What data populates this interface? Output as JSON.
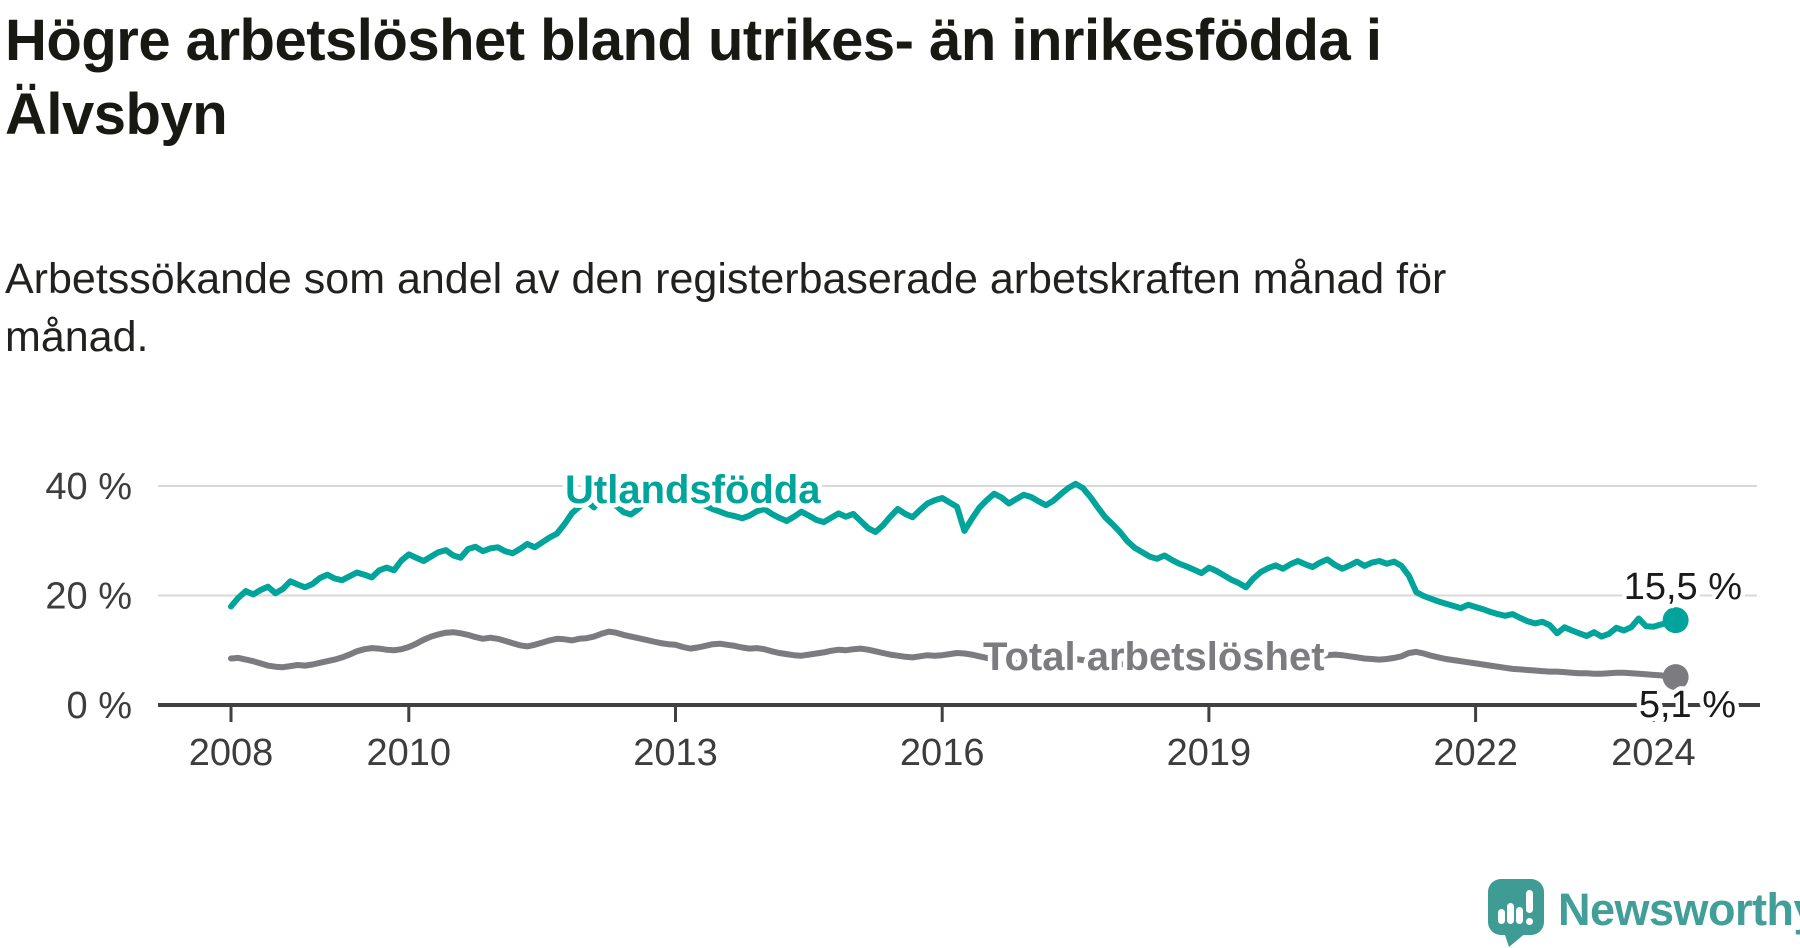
{
  "header": {
    "title_lines": [
      "Högre arbetslöshet bland utrikes- än inrikesfödda i",
      "Älvsbyn"
    ],
    "subtitle_lines": [
      "Arbetssökande som andel av den registerbaserade arbetskraften månad för",
      "månad."
    ]
  },
  "chart_data": {
    "type": "line",
    "title": "Högre arbetslöshet bland utrikes- än inrikesfödda i Älvsbyn",
    "subtitle": "Arbetssökande som andel av den registerbaserade arbetskraften månad för månad.",
    "unit": "%",
    "interval": "monthly",
    "start": "2008-01",
    "end": "2024-04",
    "grid": "horizontal",
    "legend_position": "inline-labels",
    "ylim": [
      0,
      44
    ],
    "x_tick_years": [
      2008,
      2010,
      2013,
      2016,
      2019,
      2022,
      2024
    ],
    "y_ticks": [
      {
        "value": 0,
        "label": "0 %"
      },
      {
        "value": 20,
        "label": "20 %"
      },
      {
        "value": 40,
        "label": "40 %"
      }
    ],
    "series": [
      {
        "name": "Utlandsfödda",
        "color": "#00a49a",
        "end_label": "15,5 %",
        "values": [
          18.0,
          19.6,
          20.8,
          20.2,
          21.0,
          21.6,
          20.4,
          21.2,
          22.6,
          22.0,
          21.5,
          22.1,
          23.2,
          23.8,
          23.1,
          22.8,
          23.5,
          24.2,
          23.8,
          23.3,
          24.6,
          25.1,
          24.6,
          26.4,
          27.5,
          26.9,
          26.3,
          27.1,
          27.9,
          28.3,
          27.3,
          26.9,
          28.5,
          28.9,
          28.1,
          28.6,
          28.8,
          28.1,
          27.7,
          28.5,
          29.4,
          28.8,
          29.7,
          30.6,
          31.3,
          33.0,
          35.0,
          36.2,
          37.2,
          36.1,
          38.1,
          38.0,
          36.4,
          35.2,
          34.8,
          35.8,
          37.2,
          38.4,
          39.4,
          40.1,
          39.4,
          38.6,
          37.8,
          37.0,
          36.4,
          35.8,
          35.3,
          34.8,
          34.5,
          34.1,
          34.6,
          35.4,
          35.8,
          34.9,
          34.2,
          33.6,
          34.4,
          35.3,
          34.6,
          33.8,
          33.4,
          34.2,
          35.0,
          34.4,
          34.9,
          33.6,
          32.3,
          31.6,
          32.8,
          34.4,
          35.8,
          34.9,
          34.3,
          35.6,
          36.8,
          37.4,
          37.8,
          37.0,
          36.2,
          31.8,
          34.0,
          36.0,
          37.4,
          38.6,
          37.9,
          36.8,
          37.6,
          38.4,
          38.0,
          37.2,
          36.5,
          37.3,
          38.5,
          39.6,
          40.4,
          39.6,
          38.0,
          36.1,
          34.3,
          33.0,
          31.6,
          29.9,
          28.7,
          27.9,
          27.1,
          26.7,
          27.3,
          26.5,
          25.8,
          25.3,
          24.7,
          24.1,
          25.1,
          24.5,
          23.7,
          22.9,
          22.3,
          21.5,
          23.1,
          24.3,
          25.0,
          25.5,
          24.9,
          25.7,
          26.3,
          25.7,
          25.2,
          26.0,
          26.6,
          25.6,
          24.9,
          25.5,
          26.2,
          25.4,
          26.0,
          26.3,
          25.8,
          26.2,
          25.4,
          23.6,
          20.6,
          19.9,
          19.4,
          18.9,
          18.5,
          18.1,
          17.7,
          18.3,
          17.9,
          17.5,
          17.0,
          16.6,
          16.3,
          16.6,
          15.9,
          15.3,
          14.9,
          15.2,
          14.6,
          13.1,
          14.2,
          13.6,
          13.1,
          12.6,
          13.3,
          12.5,
          13.0,
          14.1,
          13.6,
          14.2,
          15.8,
          14.4,
          14.3,
          14.7,
          15.0,
          15.5
        ]
      },
      {
        "name": "Total arbetslöshet",
        "color": "#7c7c80",
        "end_label": "5,1 %",
        "values": [
          8.5,
          8.6,
          8.3,
          8.0,
          7.6,
          7.2,
          7.0,
          6.9,
          7.1,
          7.3,
          7.2,
          7.4,
          7.7,
          8.0,
          8.3,
          8.7,
          9.2,
          9.8,
          10.2,
          10.4,
          10.3,
          10.1,
          10.0,
          10.2,
          10.6,
          11.2,
          11.9,
          12.5,
          12.9,
          13.2,
          13.3,
          13.1,
          12.8,
          12.4,
          12.1,
          12.3,
          12.1,
          11.7,
          11.3,
          10.9,
          10.7,
          11.0,
          11.4,
          11.8,
          12.1,
          12.0,
          11.8,
          12.1,
          12.2,
          12.5,
          13.0,
          13.4,
          13.2,
          12.8,
          12.5,
          12.2,
          11.9,
          11.6,
          11.3,
          11.1,
          11.0,
          10.6,
          10.3,
          10.5,
          10.8,
          11.1,
          11.2,
          11.0,
          10.8,
          10.5,
          10.3,
          10.4,
          10.2,
          9.8,
          9.5,
          9.3,
          9.1,
          9.0,
          9.2,
          9.4,
          9.6,
          9.9,
          10.1,
          10.0,
          10.2,
          10.3,
          10.1,
          9.8,
          9.5,
          9.2,
          9.0,
          8.8,
          8.7,
          8.9,
          9.1,
          9.0,
          9.1,
          9.3,
          9.5,
          9.4,
          9.2,
          8.9,
          8.6,
          8.3,
          8.0,
          7.8,
          7.7,
          7.8,
          7.9,
          7.7,
          7.6,
          7.8,
          8.1,
          8.3,
          8.4,
          8.2,
          8.0,
          7.8,
          7.7,
          7.6,
          7.5,
          7.3,
          7.2,
          7.4,
          7.6,
          7.8,
          7.9,
          7.8,
          7.6,
          7.4,
          7.3,
          7.4,
          7.5,
          7.7,
          7.9,
          8.0,
          7.9,
          7.7,
          7.5,
          7.3,
          7.2,
          7.3,
          7.4,
          7.5,
          7.7,
          8.0,
          8.5,
          8.9,
          9.1,
          9.2,
          9.1,
          8.9,
          8.7,
          8.5,
          8.4,
          8.3,
          8.4,
          8.6,
          8.9,
          9.5,
          9.7,
          9.4,
          9.0,
          8.7,
          8.4,
          8.2,
          8.0,
          7.8,
          7.6,
          7.4,
          7.2,
          7.0,
          6.8,
          6.6,
          6.5,
          6.4,
          6.3,
          6.2,
          6.1,
          6.1,
          6.0,
          5.9,
          5.8,
          5.8,
          5.7,
          5.7,
          5.8,
          5.9,
          5.9,
          5.8,
          5.7,
          5.6,
          5.5,
          5.4,
          5.2,
          5.1
        ]
      }
    ]
  },
  "branding": {
    "wordmark": "Newsworthy",
    "logo_color": "#3e9c94",
    "icon": "newsworthy-speech-bubble-chart-icon"
  },
  "colors": {
    "background": "#ffffff",
    "grid_line": "#d8d8d8",
    "axis_line": "#414141",
    "axis_text": "#3d3d3d",
    "value_label_text": "#1a1a1a"
  }
}
